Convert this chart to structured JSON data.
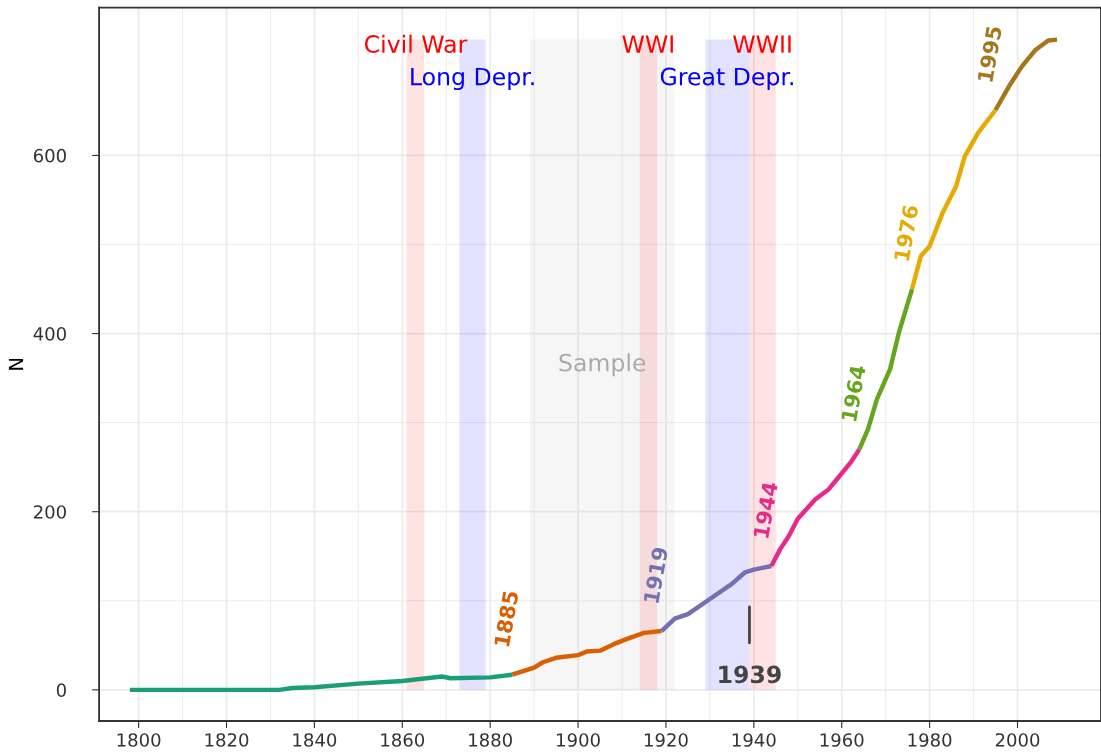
{
  "chart_data": {
    "type": "line",
    "ylabel": "N",
    "xlim": [
      1791,
      2019
    ],
    "ylim": [
      -35,
      766
    ],
    "xticks": [
      1800,
      1820,
      1840,
      1860,
      1880,
      1900,
      1920,
      1940,
      1960,
      1980,
      2000
    ],
    "yticks": [
      0,
      200,
      400,
      600
    ],
    "grid": true,
    "series": [
      {
        "color": "#1b9e77",
        "x": [
          1798,
          1832,
          1835,
          1840,
          1850,
          1860,
          1869,
          1871,
          1880,
          1885
        ],
        "values": [
          0,
          0,
          2,
          3,
          7,
          10,
          15,
          13,
          14,
          17
        ]
      },
      {
        "name": "1885",
        "color": "#d95f02",
        "x": [
          1885,
          1890,
          1892,
          1895,
          1900,
          1902,
          1905,
          1908,
          1911,
          1915,
          1919
        ],
        "values": [
          17,
          25,
          31,
          36,
          39,
          43,
          44,
          51,
          57,
          64,
          66
        ]
      },
      {
        "name": "1919",
        "color": "#7570b3",
        "x": [
          1919,
          1922,
          1925,
          1930,
          1935,
          1938,
          1940,
          1944
        ],
        "values": [
          66,
          80,
          85,
          102,
          119,
          132,
          135,
          139
        ]
      },
      {
        "name": "1944",
        "color": "#e7298a",
        "x": [
          1944,
          1946,
          1948,
          1950,
          1954,
          1957,
          1959,
          1962,
          1964
        ],
        "values": [
          139,
          158,
          173,
          192,
          214,
          225,
          237,
          255,
          270
        ]
      },
      {
        "name": "1964",
        "color": "#66a61e",
        "x": [
          1964,
          1966,
          1968,
          1971,
          1973,
          1976
        ],
        "values": [
          270,
          293,
          326,
          360,
          401,
          450
        ]
      },
      {
        "name": "1976",
        "color": "#e6ab02",
        "x": [
          1976,
          1978,
          1980,
          1983,
          1986,
          1988,
          1991,
          1995
        ],
        "values": [
          450,
          487,
          498,
          536,
          565,
          599,
          625,
          651
        ]
      },
      {
        "name": "1995",
        "color": "#a6761d",
        "x": [
          1995,
          1998,
          2001,
          2004,
          2007,
          2009
        ],
        "values": [
          651,
          677,
          700,
          718,
          729,
          730
        ]
      }
    ],
    "bands": [
      {
        "axis": "x",
        "from": 1861,
        "to": 1865,
        "label": "Civil War",
        "color": "#ff0000"
      },
      {
        "axis": "x",
        "from": 1873,
        "to": 1879,
        "label": "Long Depr.",
        "color": "#0000ff"
      },
      {
        "axis": "x",
        "from": 1889,
        "to": 1922,
        "label": "Sample",
        "color": "#aaaaaa"
      },
      {
        "axis": "x",
        "from": 1914,
        "to": 1918,
        "label": "WWI",
        "color": "#ff0000"
      },
      {
        "axis": "x",
        "from": 1929,
        "to": 1939,
        "label": "Great Depr.",
        "color": "#0000ff"
      },
      {
        "axis": "x",
        "from": 1939,
        "to": 1945,
        "label": "WWII",
        "color": "#ff0000"
      }
    ],
    "annotations": [
      {
        "text": "1939",
        "x": 1939,
        "y": 93
      }
    ]
  }
}
